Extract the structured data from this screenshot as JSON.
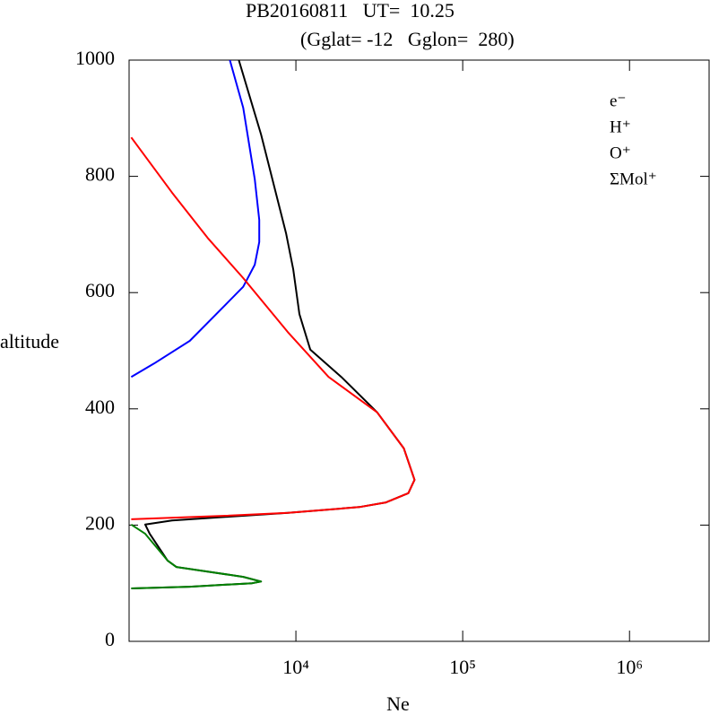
{
  "chart_data": {
    "type": "line",
    "title": "PB20160811   UT=  10.25",
    "subtitle": "(Gglat= -12   Gglon=  280)",
    "x_label": "Ne",
    "y_label": "altitude",
    "xscale": "log",
    "xlim": [
      1000,
      3000000
    ],
    "xticks": [
      {
        "value": 10000,
        "label": "10⁴"
      },
      {
        "value": 100000,
        "label": "10⁵"
      },
      {
        "value": 1000000,
        "label": "10⁶"
      }
    ],
    "ylim": [
      0,
      1000
    ],
    "yticks": [
      0,
      200,
      400,
      600,
      800,
      1000
    ],
    "grid": false,
    "legend": "upper right",
    "series": [
      {
        "name": "e⁻",
        "color": "#000000",
        "x": [
          4550,
          6180,
          8730,
          9640,
          10500,
          12200,
          18700,
          30700,
          44400,
          51400,
          47200,
          34700,
          24000,
          8950,
          3780,
          1810,
          1250,
          1330,
          1700,
          1920,
          4830,
          6180,
          5470,
          2310,
          1030
        ],
        "values": [
          1000,
          872,
          702,
          640,
          563,
          502,
          455,
          394,
          332,
          278,
          255,
          239,
          231,
          221,
          214,
          208,
          201,
          185,
          139,
          128,
          111,
          103,
          100,
          94,
          91
        ]
      },
      {
        "name": "H⁺",
        "color": "#0000ff",
        "x": [
          4020,
          4830,
          5670,
          6030,
          6030,
          5670,
          4830,
          3780,
          2310,
          1410,
          1030
        ],
        "values": [
          1000,
          918,
          795,
          725,
          687,
          648,
          610,
          579,
          517,
          478,
          455
        ]
      },
      {
        "name": "O⁺",
        "color": "#ff0000",
        "x": [
          1030,
          1810,
          2960,
          4830,
          8950,
          15700,
          30700,
          44400,
          51400,
          47200,
          34700,
          24000,
          8950,
          3780,
          1030
        ],
        "values": [
          867,
          772,
          694,
          625,
          532,
          455,
          394,
          332,
          278,
          255,
          239,
          231,
          221,
          216,
          210
        ]
      },
      {
        "name": "ΣMol⁺",
        "color": "#008000",
        "x": [
          1030,
          1250,
          1700,
          1920,
          4830,
          6180,
          5470,
          2310,
          1030
        ],
        "values": [
          201,
          185,
          139,
          128,
          111,
          103,
          100,
          94,
          91
        ]
      }
    ]
  }
}
